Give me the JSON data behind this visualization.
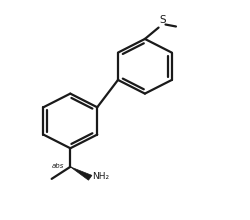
{
  "bg_color": "#ffffff",
  "line_color": "#1a1a1a",
  "line_width": 1.6,
  "text_color": "#1a1a1a",
  "figsize": [
    2.5,
    2.2
  ],
  "dpi": 100,
  "r1cx": 0.28,
  "r1cy": 0.45,
  "r1r": 0.125,
  "r2cx": 0.58,
  "r2cy": 0.7,
  "r2r": 0.125,
  "abs_label": "abs",
  "nh2_label": "NH₂",
  "s_label": "S"
}
